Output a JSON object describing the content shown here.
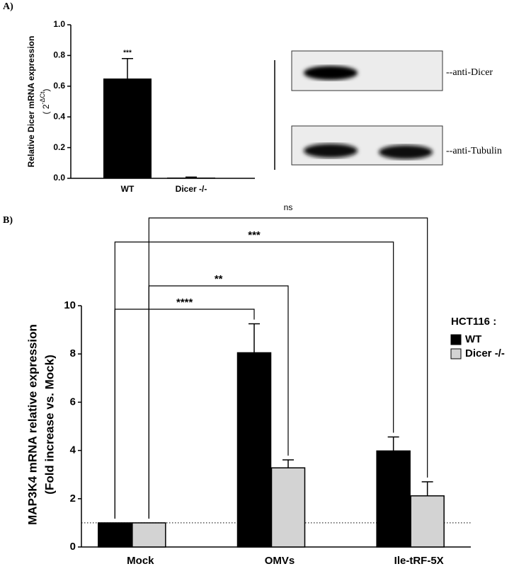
{
  "panel_labels": [
    "A)",
    "B)"
  ],
  "blot": {
    "labels": [
      "--anti-Dicer",
      "--anti-Tubulin"
    ]
  },
  "chart_data": [
    {
      "type": "bar",
      "ylabel": "Relative Dicer mRNA expression",
      "ylabel_parts": [
        "( 2",
        "-ΔCt",
        ")"
      ],
      "categories": [
        "WT",
        "Dicer -/-"
      ],
      "values": [
        0.65,
        0.005
      ],
      "errors": [
        0.13,
        0.003
      ],
      "value_annotations": [
        "***",
        null
      ],
      "color": "#000000",
      "ylim": [
        0,
        1
      ],
      "yticks": [
        {
          "value": 0,
          "label": "0.0"
        },
        0.2,
        0.4,
        0.6,
        0.8,
        {
          "value": 1,
          "label": "1.0"
        }
      ]
    },
    {
      "type": "grouped_bar",
      "ylabel": "MAP3K4 mRNA relative expression",
      "ylabel2": "(Fold increase vs. Mock)",
      "categories": [
        "Mock",
        "OMVs",
        "Ile-tRF-5X"
      ],
      "series": [
        {
          "name": "WT",
          "color": "#000000",
          "values": [
            1,
            8.05,
            3.98
          ],
          "errors": [
            0,
            1.2,
            0.58
          ]
        },
        {
          "name": "Dicer -/-",
          "color": "#d3d3d3",
          "values": [
            1,
            3.28,
            2.12
          ],
          "errors": [
            0,
            0.33,
            0.58
          ]
        }
      ],
      "legend_title": "HCT116 :",
      "reference_line": 1,
      "comparisons": [
        {
          "label": "****",
          "series": 0,
          "from": 0,
          "to": 1
        },
        {
          "label": "**",
          "series": 1,
          "from": 0,
          "to": 1
        },
        {
          "label": "***",
          "series": 0,
          "from": 0,
          "to": 2
        },
        {
          "label": "ns",
          "series": 1,
          "from": 0,
          "to": 2
        }
      ],
      "ylim": [
        0,
        10
      ],
      "yticks": [
        0,
        2,
        4,
        6,
        8,
        10
      ]
    }
  ]
}
